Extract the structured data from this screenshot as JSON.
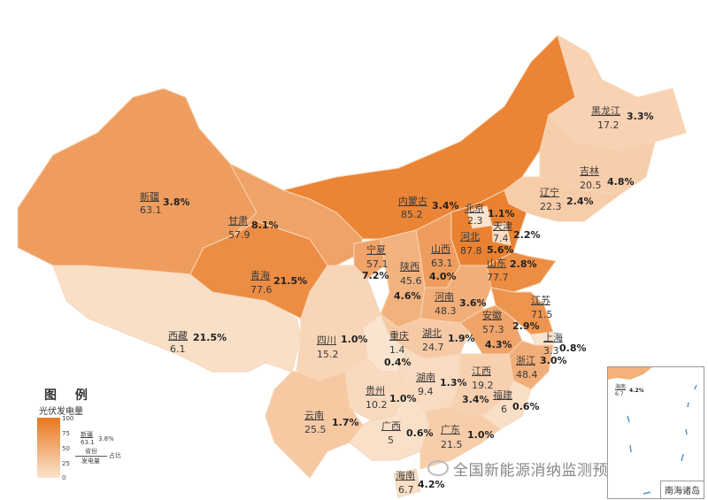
{
  "legend": {
    "title": "图 例",
    "subtitle": "光伏发电量",
    "ticks": [
      "100",
      "75",
      "50",
      "25",
      "0"
    ],
    "example": {
      "name": "新疆",
      "generation": "63.1",
      "share": "3.8%"
    },
    "key": {
      "province": "省份",
      "generation": "发电量",
      "share": "占比"
    },
    "scale_min": 0,
    "scale_max": 100,
    "color_low": "#fbe6d2",
    "color_high": "#e8731a"
  },
  "watermark": "全国新能源消纳监测预警中心",
  "inset": {
    "label": "南海诸岛",
    "hainan_name": "海南",
    "hainan_generation": "6.7",
    "hainan_share": "4.2%"
  },
  "provinces": [
    {
      "name": "新疆",
      "generation": "63.1",
      "share": "3.8%"
    },
    {
      "name": "西藏",
      "generation": "6.1",
      "share": "21.5%"
    },
    {
      "name": "青海",
      "generation": "77.6",
      "share": "21.5%"
    },
    {
      "name": "甘肃",
      "generation": "57.9",
      "share": "8.1%"
    },
    {
      "name": "内蒙古",
      "generation": "85.2",
      "share": "3.4%"
    },
    {
      "name": "黑龙江",
      "generation": "17.2",
      "share": "3.3%"
    },
    {
      "name": "吉林",
      "generation": "20.5",
      "share": "4.8%"
    },
    {
      "name": "辽宁",
      "generation": "22.3",
      "share": "2.4%"
    },
    {
      "name": "河北",
      "generation": "87.8",
      "share": "5.6%"
    },
    {
      "name": "北京",
      "generation": "2.3",
      "share": "1.1%"
    },
    {
      "name": "天津",
      "generation": "7.4",
      "share": "2.2%"
    },
    {
      "name": "山西",
      "generation": "63.1",
      "share": "4.0%"
    },
    {
      "name": "宁夏",
      "generation": "57.1",
      "share": "7.2%"
    },
    {
      "name": "陕西",
      "generation": "45.6",
      "share": "4.6%"
    },
    {
      "name": "山东",
      "generation": "77.7",
      "share": "2.8%"
    },
    {
      "name": "河南",
      "generation": "48.3",
      "share": "3.6%"
    },
    {
      "name": "江苏",
      "generation": "71.5",
      "share": "2.9%"
    },
    {
      "name": "安徽",
      "generation": "57.3",
      "share": "4.3%"
    },
    {
      "name": "上海",
      "generation": "3.3",
      "share": "0.8%"
    },
    {
      "name": "浙江",
      "generation": "48.4",
      "share": "3.0%"
    },
    {
      "name": "湖北",
      "generation": "24.7",
      "share": "1.9%"
    },
    {
      "name": "重庆",
      "generation": "1.4",
      "share": "0.4%"
    },
    {
      "name": "四川",
      "generation": "15.2",
      "share": "1.0%"
    },
    {
      "name": "云南",
      "generation": "25.5",
      "share": "1.7%"
    },
    {
      "name": "贵州",
      "generation": "10.2",
      "share": "1.0%"
    },
    {
      "name": "湖南",
      "generation": "9.4",
      "share": "1.3%"
    },
    {
      "name": "江西",
      "generation": "19.2",
      "share": "3.4%"
    },
    {
      "name": "福建",
      "generation": "6",
      "share": "0.6%"
    },
    {
      "name": "广西",
      "generation": "5",
      "share": "0.6%"
    },
    {
      "name": "广东",
      "generation": "21.5",
      "share": "1.0%"
    },
    {
      "name": "海南",
      "generation": "6.7",
      "share": "4.2%"
    }
  ]
}
